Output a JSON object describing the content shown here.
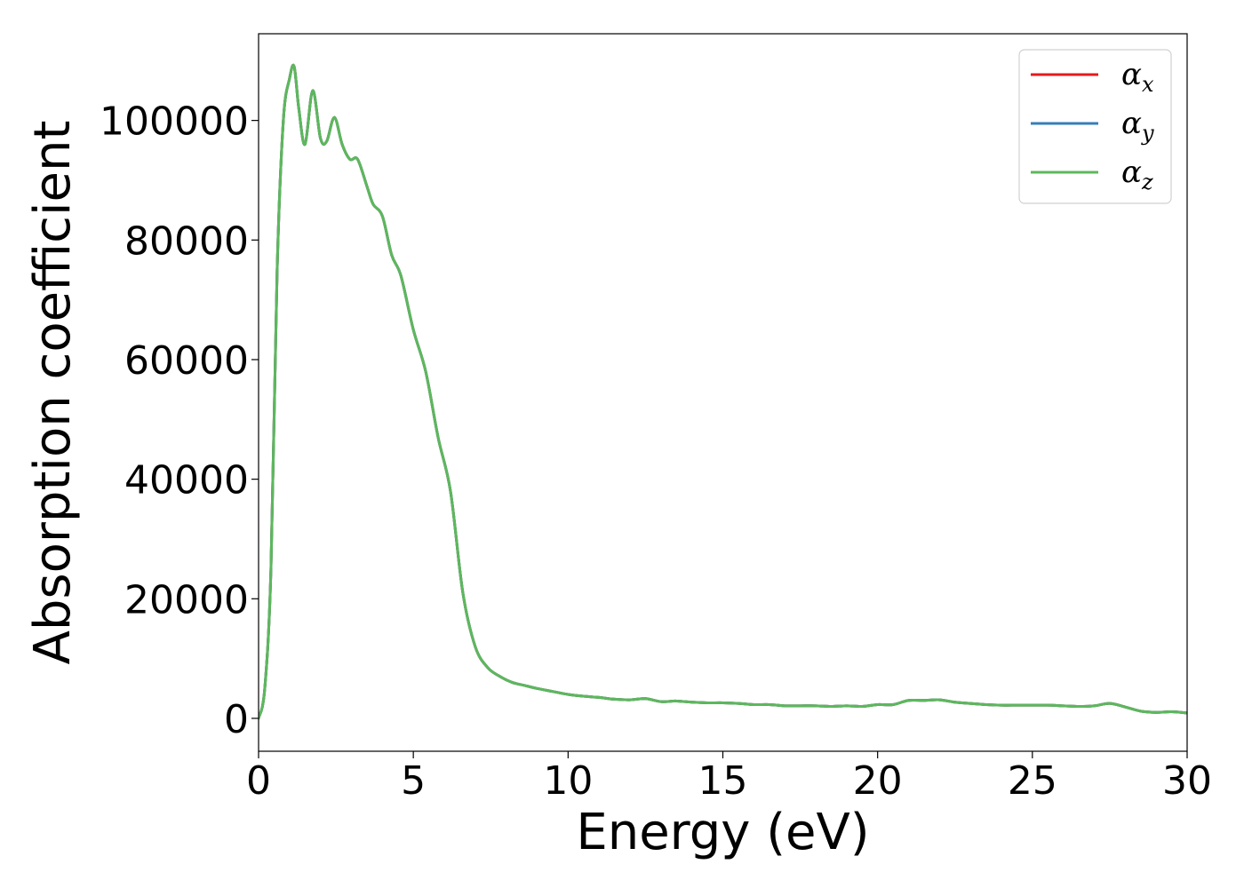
{
  "chart_data": {
    "type": "line",
    "xlabel": "Energy (eV)",
    "ylabel": "Absorption coefficient",
    "xlim": [
      0,
      30
    ],
    "ylim": [
      -5500,
      114500
    ],
    "xticks": [
      0,
      5,
      10,
      15,
      20,
      25,
      30
    ],
    "yticks": [
      0,
      20000,
      40000,
      60000,
      80000,
      100000
    ],
    "grid": false,
    "legend_position": "top-right",
    "series": [
      {
        "name": "αx",
        "symbol": "α",
        "subscript": "x",
        "color": "#e41a1c",
        "x": [
          0,
          0.2,
          0.4,
          0.6,
          0.8,
          1.0,
          1.15,
          1.3,
          1.5,
          1.75,
          2.0,
          2.2,
          2.45,
          2.7,
          2.95,
          3.2,
          3.5,
          3.7,
          4.0,
          4.3,
          4.6,
          5.0,
          5.4,
          5.8,
          6.2,
          6.6,
          7.0,
          7.4,
          7.8,
          8.2,
          8.6,
          9.0,
          9.5,
          10.0,
          10.5,
          11.0,
          11.5,
          12.0,
          12.5,
          13.0,
          13.5,
          14.0,
          14.5,
          15.0,
          15.5,
          16.0,
          16.5,
          17.0,
          17.5,
          18.0,
          18.5,
          19.0,
          19.5,
          20.0,
          20.5,
          21.0,
          21.5,
          22.0,
          22.5,
          23.0,
          23.5,
          24.0,
          24.5,
          25.0,
          25.5,
          26.0,
          26.5,
          27.0,
          27.5,
          28.0,
          28.5,
          29.0,
          29.5,
          30.0
        ],
        "y": [
          0,
          5000,
          25000,
          75000,
          100000,
          107000,
          109000,
          102000,
          96000,
          105000,
          97000,
          96500,
          100500,
          96000,
          93500,
          93500,
          89000,
          86000,
          84000,
          77500,
          74000,
          65000,
          58000,
          47000,
          38000,
          21000,
          12000,
          8500,
          7000,
          6000,
          5500,
          5000,
          4500,
          4000,
          3700,
          3500,
          3200,
          3100,
          3300,
          2800,
          2900,
          2700,
          2600,
          2600,
          2500,
          2300,
          2300,
          2100,
          2100,
          2100,
          2000,
          2100,
          2000,
          2300,
          2300,
          3000,
          3000,
          3100,
          2700,
          2500,
          2300,
          2200,
          2200,
          2200,
          2200,
          2100,
          2000,
          2100,
          2500,
          1900,
          1200,
          1000,
          1100,
          900
        ]
      },
      {
        "name": "αy",
        "symbol": "α",
        "subscript": "y",
        "color": "#377eb8",
        "x": [
          0,
          0.2,
          0.4,
          0.6,
          0.8,
          1.0,
          1.15,
          1.3,
          1.5,
          1.75,
          2.0,
          2.2,
          2.45,
          2.7,
          2.95,
          3.2,
          3.5,
          3.7,
          4.0,
          4.3,
          4.6,
          5.0,
          5.4,
          5.8,
          6.2,
          6.6,
          7.0,
          7.4,
          7.8,
          8.2,
          8.6,
          9.0,
          9.5,
          10.0,
          10.5,
          11.0,
          11.5,
          12.0,
          12.5,
          13.0,
          13.5,
          14.0,
          14.5,
          15.0,
          15.5,
          16.0,
          16.5,
          17.0,
          17.5,
          18.0,
          18.5,
          19.0,
          19.5,
          20.0,
          20.5,
          21.0,
          21.5,
          22.0,
          22.5,
          23.0,
          23.5,
          24.0,
          24.5,
          25.0,
          25.5,
          26.0,
          26.5,
          27.0,
          27.5,
          28.0,
          28.5,
          29.0,
          29.5,
          30.0
        ],
        "y": [
          0,
          5000,
          25000,
          75000,
          100000,
          107000,
          109000,
          102000,
          96000,
          105000,
          97000,
          96500,
          100500,
          96000,
          93500,
          93500,
          89000,
          86000,
          84000,
          77500,
          74000,
          65000,
          58000,
          47000,
          38000,
          21000,
          12000,
          8500,
          7000,
          6000,
          5500,
          5000,
          4500,
          4000,
          3700,
          3500,
          3200,
          3100,
          3300,
          2800,
          2900,
          2700,
          2600,
          2600,
          2500,
          2300,
          2300,
          2100,
          2100,
          2100,
          2000,
          2100,
          2000,
          2300,
          2300,
          3000,
          3000,
          3100,
          2700,
          2500,
          2300,
          2200,
          2200,
          2200,
          2200,
          2100,
          2000,
          2100,
          2500,
          1900,
          1200,
          1000,
          1100,
          900
        ]
      },
      {
        "name": "αz",
        "symbol": "α",
        "subscript": "z",
        "color": "#5cb85c",
        "x": [
          0,
          0.2,
          0.4,
          0.6,
          0.8,
          1.0,
          1.15,
          1.3,
          1.5,
          1.75,
          2.0,
          2.2,
          2.45,
          2.7,
          2.95,
          3.2,
          3.5,
          3.7,
          4.0,
          4.3,
          4.6,
          5.0,
          5.4,
          5.8,
          6.2,
          6.6,
          7.0,
          7.4,
          7.8,
          8.2,
          8.6,
          9.0,
          9.5,
          10.0,
          10.5,
          11.0,
          11.5,
          12.0,
          12.5,
          13.0,
          13.5,
          14.0,
          14.5,
          15.0,
          15.5,
          16.0,
          16.5,
          17.0,
          17.5,
          18.0,
          18.5,
          19.0,
          19.5,
          20.0,
          20.5,
          21.0,
          21.5,
          22.0,
          22.5,
          23.0,
          23.5,
          24.0,
          24.5,
          25.0,
          25.5,
          26.0,
          26.5,
          27.0,
          27.5,
          28.0,
          28.5,
          29.0,
          29.5,
          30.0
        ],
        "y": [
          0,
          5000,
          25000,
          75000,
          100000,
          107000,
          109000,
          102000,
          96000,
          105000,
          97000,
          96500,
          100500,
          96000,
          93500,
          93500,
          89000,
          86000,
          84000,
          77500,
          74000,
          65000,
          58000,
          47000,
          38000,
          21000,
          12000,
          8500,
          7000,
          6000,
          5500,
          5000,
          4500,
          4000,
          3700,
          3500,
          3200,
          3100,
          3300,
          2800,
          2900,
          2700,
          2600,
          2600,
          2500,
          2300,
          2300,
          2100,
          2100,
          2100,
          2000,
          2100,
          2000,
          2300,
          2300,
          3000,
          3000,
          3100,
          2700,
          2500,
          2300,
          2200,
          2200,
          2200,
          2200,
          2100,
          2000,
          2100,
          2500,
          1900,
          1200,
          1000,
          1100,
          900
        ]
      }
    ]
  }
}
